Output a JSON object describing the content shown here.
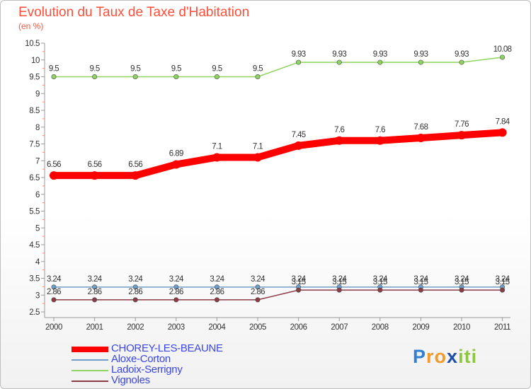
{
  "chart_data": {
    "type": "line",
    "title": "Evolution du Taux de Taxe d'Habitation",
    "subtitle": "(en %)",
    "xlabel": "",
    "ylabel": "",
    "x": [
      "2000",
      "2001",
      "2002",
      "2003",
      "2004",
      "2005",
      "2006",
      "2007",
      "2008",
      "2009",
      "2010",
      "2011"
    ],
    "ylim": [
      2.5,
      10.5
    ],
    "yticks": [
      "2.5",
      "3",
      "3.5",
      "4",
      "4.5",
      "5",
      "5.5",
      "6",
      "6.5",
      "7",
      "7.5",
      "8",
      "8.5",
      "9",
      "9.5",
      "10",
      "10.5"
    ],
    "grid": false,
    "legend_position": "bottom-left",
    "series": [
      {
        "name": "CHOREY-LES-BEAUNE",
        "color": "#ff0000",
        "values": [
          6.56,
          6.56,
          6.56,
          6.89,
          7.1,
          7.1,
          7.45,
          7.6,
          7.6,
          7.68,
          7.76,
          7.84
        ],
        "labels": [
          "6.56",
          "6.56",
          "6.56",
          "6.89",
          "7.1",
          "7.1",
          "7.45",
          "7.6",
          "7.6",
          "7.68",
          "7.76",
          "7.84"
        ]
      },
      {
        "name": "Aloxe-Corton",
        "color": "#6e9ec8",
        "values": [
          3.24,
          3.24,
          3.24,
          3.24,
          3.24,
          3.24,
          3.24,
          3.24,
          3.24,
          3.24,
          3.24,
          3.24
        ],
        "labels": [
          "3.24",
          "3.24",
          "3.24",
          "3.24",
          "3.24",
          "3.24",
          "3.24",
          "3.24",
          "3.24",
          "3.24",
          "3.24",
          "3.24"
        ]
      },
      {
        "name": "Ladoix-Serrigny",
        "color": "#8fd460",
        "values": [
          9.5,
          9.5,
          9.5,
          9.5,
          9.5,
          9.5,
          9.93,
          9.93,
          9.93,
          9.93,
          9.93,
          10.08
        ],
        "labels": [
          "9.5",
          "9.5",
          "9.5",
          "9.5",
          "9.5",
          "9.5",
          "9.93",
          "9.93",
          "9.93",
          "9.93",
          "9.93",
          "10.08"
        ]
      },
      {
        "name": "Vignoles",
        "color": "#8b3b43",
        "values": [
          2.86,
          2.86,
          2.86,
          2.86,
          2.86,
          2.86,
          3.15,
          3.15,
          3.15,
          3.15,
          3.15,
          3.15
        ],
        "labels": [
          "2.86",
          "2.86",
          "2.86",
          "2.86",
          "2.86",
          "2.86",
          "3.15",
          "3.15",
          "3.15",
          "3.15",
          "3.15",
          "3.15"
        ]
      }
    ]
  },
  "legend": {
    "items": [
      {
        "label": "CHOREY-LES-BEAUNE",
        "color": "#ff0000"
      },
      {
        "label": "Aloxe-Corton",
        "color": "#6e9ec8"
      },
      {
        "label": "Ladoix-Serrigny",
        "color": "#8fd460"
      },
      {
        "label": "Vignoles",
        "color": "#8b3b43"
      }
    ]
  },
  "logo": {
    "letters": [
      "P",
      "r",
      "o",
      "x",
      "i",
      "t",
      "i"
    ],
    "colors": [
      "#2f7fd3",
      "#f29a2a",
      "#f29a2a",
      "#1e4fa8",
      "#8fc63f",
      "#8fc63f",
      "#8fc63f"
    ]
  }
}
